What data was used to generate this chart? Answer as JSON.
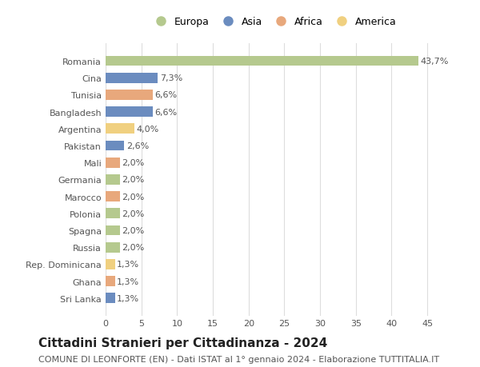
{
  "countries": [
    "Romania",
    "Cina",
    "Tunisia",
    "Bangladesh",
    "Argentina",
    "Pakistan",
    "Mali",
    "Germania",
    "Marocco",
    "Polonia",
    "Spagna",
    "Russia",
    "Rep. Dominicana",
    "Ghana",
    "Sri Lanka"
  ],
  "values": [
    43.7,
    7.3,
    6.6,
    6.6,
    4.0,
    2.6,
    2.0,
    2.0,
    2.0,
    2.0,
    2.0,
    2.0,
    1.3,
    1.3,
    1.3
  ],
  "labels": [
    "43,7%",
    "7,3%",
    "6,6%",
    "6,6%",
    "4,0%",
    "2,6%",
    "2,0%",
    "2,0%",
    "2,0%",
    "2,0%",
    "2,0%",
    "2,0%",
    "1,3%",
    "1,3%",
    "1,3%"
  ],
  "colors": [
    "#b5c98e",
    "#6b8cbf",
    "#e8a87c",
    "#6b8cbf",
    "#f0d080",
    "#6b8cbf",
    "#e8a87c",
    "#b5c98e",
    "#e8a87c",
    "#b5c98e",
    "#b5c98e",
    "#b5c98e",
    "#f0d080",
    "#e8a87c",
    "#6b8cbf"
  ],
  "legend_labels": [
    "Europa",
    "Asia",
    "Africa",
    "America"
  ],
  "legend_colors": [
    "#b5c98e",
    "#6b8cbf",
    "#e8a87c",
    "#f0d080"
  ],
  "title": "Cittadini Stranieri per Cittadinanza - 2024",
  "subtitle": "COMUNE DI LEONFORTE (EN) - Dati ISTAT al 1° gennaio 2024 - Elaborazione TUTTITALIA.IT",
  "xlim": [
    0,
    47
  ],
  "xticks": [
    0,
    5,
    10,
    15,
    20,
    25,
    30,
    35,
    40,
    45
  ],
  "background_color": "#ffffff",
  "grid_color": "#dddddd",
  "bar_label_fontsize": 8,
  "axis_label_fontsize": 8,
  "title_fontsize": 11,
  "subtitle_fontsize": 8
}
